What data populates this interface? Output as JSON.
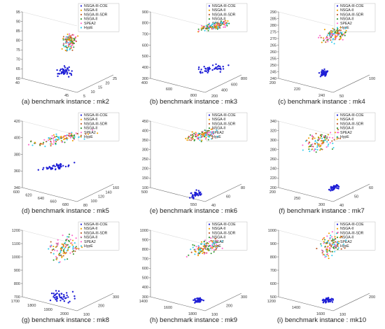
{
  "legend_entries": [
    "NSGA-III-COE",
    "NSGA-II",
    "NSGA-III-SDR",
    "NSGA-II",
    "SPEA2",
    "HypE"
  ],
  "colors": [
    "#1f1fd6",
    "#f0a000",
    "#c06030",
    "#3a9a3a",
    "#ff66cc",
    "#33ccee"
  ],
  "chart_data": [
    {
      "type": "scatter",
      "caption": "(a)  benchmark instance : mk2",
      "z_ticks": [
        "60",
        "65",
        "70",
        "75",
        "80",
        "85",
        "90",
        "95"
      ],
      "x_ticks": [
        "40",
        "45"
      ],
      "y_ticks": [
        "5",
        "10",
        "15",
        "20",
        "25"
      ]
    },
    {
      "type": "scatter",
      "caption": "(b)  benchmark instance : mk3",
      "z_ticks": [
        "300",
        "400",
        "500",
        "600",
        "700",
        "800",
        "900"
      ],
      "x_ticks": [
        "400",
        "600",
        "800"
      ],
      "y_ticks": [
        "200",
        "400",
        "600",
        "800"
      ]
    },
    {
      "type": "scatter",
      "caption": "(c)  benchmark instance : mk4",
      "z_ticks": [
        "240",
        "245",
        "250",
        "255",
        "260",
        "265",
        "270",
        "275",
        "280",
        "285",
        "290"
      ],
      "x_ticks": [
        "200",
        "220",
        "240"
      ],
      "y_ticks": [
        "50",
        "100"
      ]
    },
    {
      "type": "scatter",
      "caption": "(d)  benchmark instance : mk5",
      "z_ticks": [
        "340",
        "360",
        "380",
        "400",
        "420"
      ],
      "x_ticks": [
        "600",
        "620",
        "640",
        "660",
        "680"
      ],
      "y_ticks": [
        "80",
        "100",
        "120",
        "140",
        "160"
      ]
    },
    {
      "type": "scatter",
      "caption": "(e)  benchmark instance : mk6",
      "z_ticks": [
        "100",
        "150",
        "200",
        "250",
        "300",
        "350",
        "400",
        "450"
      ],
      "x_ticks": [
        "500",
        "550"
      ],
      "y_ticks": [
        "40",
        "60",
        "80"
      ]
    },
    {
      "type": "scatter",
      "caption": "(f)  benchmark instance : mk7",
      "z_ticks": [
        "200",
        "220",
        "240",
        "260",
        "280",
        "300",
        "320",
        "340"
      ],
      "x_ticks": [
        "200",
        "250",
        "300"
      ],
      "y_ticks": [
        "40",
        "50",
        "60"
      ]
    },
    {
      "type": "scatter",
      "caption": "(g)  benchmark instance : mk8",
      "z_ticks": [
        "700",
        "800",
        "900",
        "1000",
        "1100",
        "1200"
      ],
      "x_ticks": [
        "1700",
        "1800",
        "1900",
        "2000"
      ],
      "y_ticks": [
        "100",
        "200",
        "300"
      ]
    },
    {
      "type": "scatter",
      "caption": "(h)  benchmark instance : mk9",
      "z_ticks": [
        "300",
        "400",
        "500",
        "600",
        "700",
        "800",
        "900",
        "1000"
      ],
      "x_ticks": [
        "1400",
        "1600",
        "1800"
      ],
      "y_ticks": [
        "100",
        "200",
        "300"
      ]
    },
    {
      "type": "scatter",
      "caption": "(i)  benchmark instance : mk10",
      "z_ticks": [
        "500",
        "600",
        "700",
        "800",
        "900",
        "1000"
      ],
      "x_ticks": [
        "1200",
        "1400",
        "1600"
      ],
      "y_ticks": [
        "100",
        "200"
      ]
    }
  ]
}
